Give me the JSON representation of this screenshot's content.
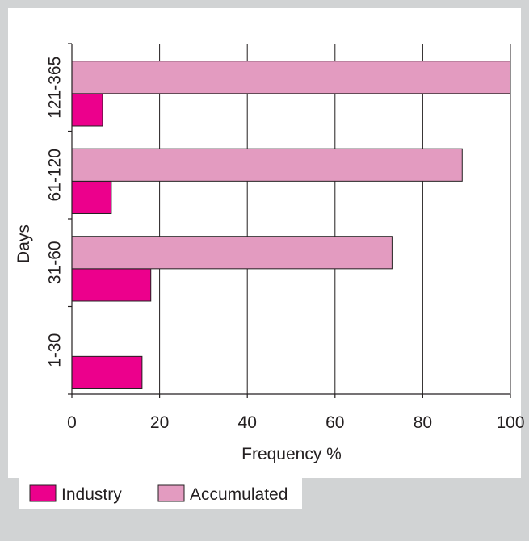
{
  "chart_data": {
    "type": "bar",
    "orientation": "horizontal",
    "categories": [
      "1-30",
      "31-60",
      "61-120",
      "121-365"
    ],
    "series": [
      {
        "name": "Industry",
        "color": "#ec008c",
        "values": [
          16,
          18,
          9,
          7
        ]
      },
      {
        "name": "Accumulated",
        "color": "#e39bc0",
        "values": [
          null,
          73,
          89,
          100
        ]
      }
    ],
    "xlabel": "Frequency %",
    "ylabel": "Days",
    "xlim": [
      0,
      100
    ],
    "xticks": [
      "0",
      "20",
      "40",
      "60",
      "80",
      "100"
    ],
    "grid": true,
    "legend_position": "bottom-left"
  }
}
